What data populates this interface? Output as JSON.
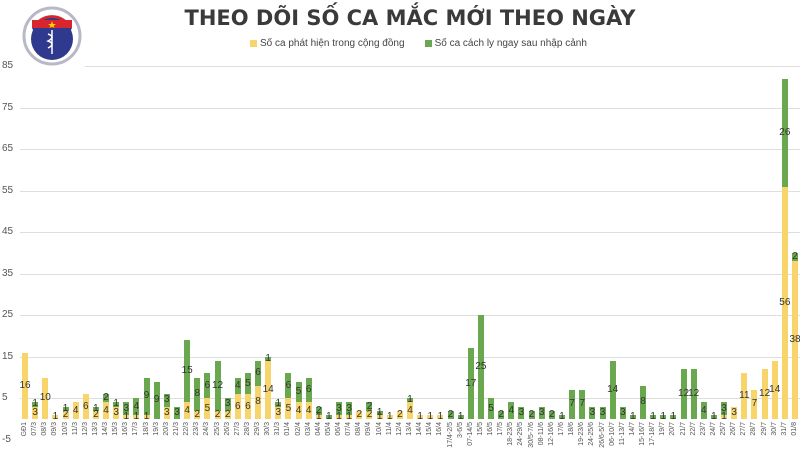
{
  "header": {
    "title": "THEO DÕI SỐ CA MẮC MỚI THEO NGÀY",
    "logo_text_top": "BỘ Y TẾ",
    "logo_text_bottom": "MINISTRY OF HEALTH"
  },
  "legend": {
    "community": "Số ca phát hiện trong cộng đồng",
    "quarantine": "Số ca cách ly ngay sau nhập cảnh"
  },
  "colors": {
    "community": "#f7d56a",
    "quarantine": "#6aa84f",
    "grid": "#dedede",
    "title": "#3a3a3a"
  },
  "chart_data": {
    "type": "bar",
    "stacked": true,
    "title": "THEO DÕI SỐ CA MẮC MỚI THEO NGÀY",
    "xlabel": "",
    "ylabel": "",
    "ylim": [
      -5,
      85
    ],
    "yticks": [
      -5,
      5,
      15,
      25,
      35,
      45,
      55,
      65,
      75,
      85
    ],
    "grid": true,
    "legend_position": "top",
    "categories": [
      "GĐ1",
      "07/3",
      "08/3",
      "09/3",
      "10/3",
      "11/3",
      "12/3",
      "13/3",
      "14/3",
      "15/3",
      "16/3",
      "17/3",
      "18/3",
      "19/3",
      "20/3",
      "21/3",
      "22/3",
      "23/3",
      "24/3",
      "25/3",
      "26/3",
      "27/3",
      "28/3",
      "29/3",
      "30/3",
      "31/3",
      "01/4",
      "02/4",
      "03/4",
      "04/4",
      "05/4",
      "06/4",
      "07/4",
      "08/4",
      "09/4",
      "10/4",
      "11/4",
      "12/4",
      "13/4",
      "14/4",
      "15/4",
      "16/4",
      "17/4-2/5",
      "3-6/5",
      "07-14/5",
      "15/5",
      "16/5",
      "17/5",
      "18-23/5",
      "24-29/5",
      "30/5-7/6",
      "08-11/6",
      "12-16/6",
      "17/6",
      "18/6",
      "19-23/6",
      "24-25/6",
      "26/6-5/7",
      "06-10/7",
      "11-13/7",
      "14/7",
      "15-16/7",
      "17-18/7",
      "19/7",
      "20/7",
      "21/7",
      "22/7",
      "23/7",
      "24/7",
      "25/7",
      "26/7",
      "27/7",
      "28/7",
      "29/7",
      "30/7",
      "31/7",
      "01/8"
    ],
    "series": [
      {
        "name": "Số ca phát hiện trong cộng đồng",
        "color": "#f7d56a",
        "values": [
          16,
          3,
          10,
          1,
          2,
          4,
          6,
          2,
          4,
          3,
          1,
          1,
          1,
          0,
          3,
          0,
          4,
          2,
          5,
          2,
          2,
          6,
          6,
          8,
          14,
          3,
          5,
          4,
          4,
          1,
          0,
          1,
          1,
          2,
          2,
          1,
          1,
          2,
          4,
          1,
          1,
          1,
          0,
          0,
          0,
          0,
          0,
          0,
          0,
          0,
          0,
          0,
          0,
          0,
          0,
          0,
          0,
          0,
          0,
          0,
          0,
          0,
          0,
          0,
          0,
          0,
          0,
          0,
          0,
          1,
          3,
          11,
          7,
          12,
          14,
          56,
          38
        ]
      },
      {
        "name": "Số ca cách ly ngay sau nhập cảnh",
        "color": "#6aa84f",
        "values": [
          0,
          1,
          0,
          0,
          1,
          0,
          0,
          1,
          2,
          1,
          3,
          4,
          9,
          9,
          3,
          3,
          15,
          8,
          6,
          12,
          3,
          4,
          5,
          6,
          1,
          1,
          6,
          5,
          6,
          2,
          1,
          3,
          3,
          0,
          2,
          1,
          0,
          0,
          1,
          0,
          0,
          0,
          2,
          1,
          17,
          25,
          5,
          2,
          4,
          3,
          2,
          3,
          2,
          1,
          7,
          7,
          3,
          3,
          14,
          3,
          1,
          8,
          1,
          1,
          1,
          12,
          12,
          4,
          1,
          3,
          0,
          0,
          0,
          0,
          0,
          26,
          2
        ]
      }
    ]
  }
}
